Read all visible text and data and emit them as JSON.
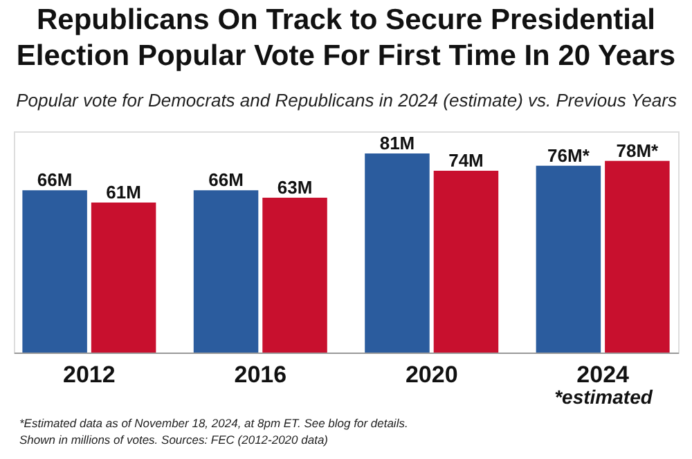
{
  "chart_data": {
    "type": "bar",
    "title": "Republicans On Track to Secure Presidential\nElection Popular Vote For First Time In 20 Years",
    "subtitle": "Popular vote for Democrats and Republicans in 2024 (estimate) vs. Previous Years",
    "categories": [
      "2012",
      "2016",
      "2020",
      "2024"
    ],
    "series": [
      {
        "color": "#2b5c9e",
        "values": [
          66,
          66,
          81,
          76
        ],
        "value_labels": [
          "66M",
          "66M",
          "81M",
          "76M*"
        ]
      },
      {
        "color": "#c8102e",
        "values": [
          61,
          63,
          74,
          78
        ],
        "value_labels": [
          "61M",
          "63M",
          "74M",
          "78M*"
        ]
      }
    ],
    "ylim": [
      0,
      90
    ],
    "annotations": [
      "*estimated",
      "*Estimated data as of November 18, 2024, at 8pm ET. See blog for details.",
      "Shown in millions of votes. Sources: FEC (2012-2020 data)"
    ]
  }
}
